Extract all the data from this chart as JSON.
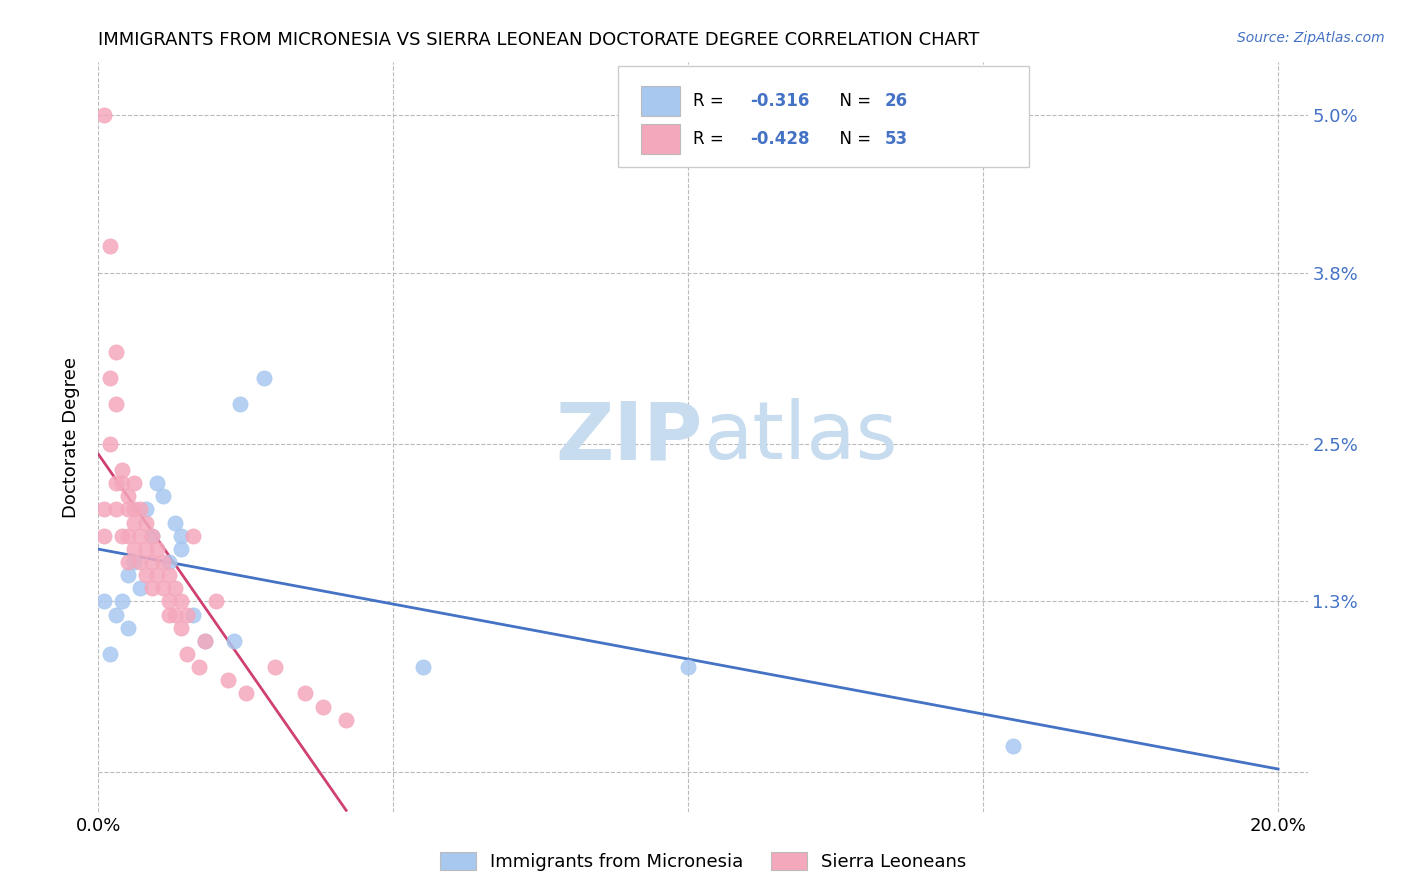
{
  "title": "IMMIGRANTS FROM MICRONESIA VS SIERRA LEONEAN DOCTORATE DEGREE CORRELATION CHART",
  "source": "Source: ZipAtlas.com",
  "ylabel": "Doctorate Degree",
  "yticks": [
    0.0,
    0.013,
    0.025,
    0.038,
    0.05
  ],
  "ytick_labels": [
    "",
    "1.3%",
    "2.5%",
    "3.8%",
    "5.0%"
  ],
  "xticks": [
    0.0,
    0.05,
    0.1,
    0.15,
    0.2
  ],
  "xtick_labels": [
    "0.0%",
    "",
    "",
    "",
    "20.0%"
  ],
  "xmin": 0.0,
  "xmax": 0.205,
  "ymin": -0.003,
  "ymax": 0.054,
  "blue_color": "#A8C8F0",
  "pink_color": "#F4A8BC",
  "blue_line_color": "#4472C4",
  "pink_line_color": "#D04070",
  "label_color": "#4472C4",
  "watermark_color": "#C8DCF0",
  "micronesia_x": [
    0.001,
    0.002,
    0.003,
    0.004,
    0.005,
    0.005,
    0.006,
    0.007,
    0.008,
    0.009,
    0.01,
    0.011,
    0.012,
    0.013,
    0.014,
    0.014,
    0.016,
    0.018,
    0.023,
    0.024,
    0.028,
    0.055,
    0.1,
    0.155
  ],
  "micronesia_y": [
    0.013,
    0.009,
    0.012,
    0.013,
    0.011,
    0.015,
    0.016,
    0.014,
    0.02,
    0.018,
    0.022,
    0.021,
    0.016,
    0.019,
    0.018,
    0.017,
    0.012,
    0.01,
    0.01,
    0.028,
    0.03,
    0.008,
    0.008,
    0.002
  ],
  "sierra_x": [
    0.001,
    0.001,
    0.001,
    0.002,
    0.002,
    0.002,
    0.003,
    0.003,
    0.003,
    0.003,
    0.004,
    0.004,
    0.004,
    0.005,
    0.005,
    0.005,
    0.005,
    0.006,
    0.006,
    0.006,
    0.006,
    0.007,
    0.007,
    0.007,
    0.008,
    0.008,
    0.008,
    0.009,
    0.009,
    0.009,
    0.01,
    0.01,
    0.011,
    0.011,
    0.012,
    0.012,
    0.012,
    0.013,
    0.013,
    0.014,
    0.014,
    0.015,
    0.015,
    0.016,
    0.017,
    0.018,
    0.02,
    0.022,
    0.025,
    0.03,
    0.035,
    0.038,
    0.042
  ],
  "sierra_y": [
    0.05,
    0.02,
    0.018,
    0.04,
    0.03,
    0.025,
    0.032,
    0.028,
    0.022,
    0.02,
    0.023,
    0.022,
    0.018,
    0.021,
    0.02,
    0.018,
    0.016,
    0.022,
    0.02,
    0.019,
    0.017,
    0.02,
    0.018,
    0.016,
    0.019,
    0.017,
    0.015,
    0.018,
    0.016,
    0.014,
    0.017,
    0.015,
    0.016,
    0.014,
    0.015,
    0.013,
    0.012,
    0.014,
    0.012,
    0.013,
    0.011,
    0.012,
    0.009,
    0.018,
    0.008,
    0.01,
    0.013,
    0.007,
    0.006,
    0.008,
    0.006,
    0.005,
    0.004
  ]
}
